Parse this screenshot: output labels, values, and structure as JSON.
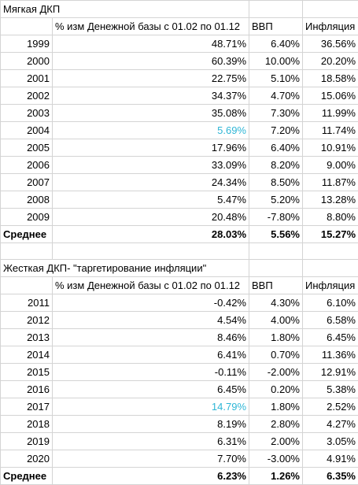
{
  "sections": [
    {
      "title": "Мягкая ДКП",
      "headers": [
        "",
        "% изм Денежной базы с 01.02 по 01.12",
        "ВВП",
        "Инфляция"
      ],
      "rows": [
        {
          "year": "1999",
          "money": "48.71%",
          "gdp": "6.40%",
          "inflation": "36.56%"
        },
        {
          "year": "2000",
          "money": "60.39%",
          "gdp": "10.00%",
          "inflation": "20.20%"
        },
        {
          "year": "2001",
          "money": "22.75%",
          "gdp": "5.10%",
          "inflation": "18.58%"
        },
        {
          "year": "2002",
          "money": "34.37%",
          "gdp": "4.70%",
          "inflation": "15.06%"
        },
        {
          "year": "2003",
          "money": "35.08%",
          "gdp": "7.30%",
          "inflation": "11.99%"
        },
        {
          "year": "2004",
          "money": "5.69%",
          "gdp": "7.20%",
          "inflation": "11.74%"
        },
        {
          "year": "2005",
          "money": "17.96%",
          "gdp": "6.40%",
          "inflation": "10.91%"
        },
        {
          "year": "2006",
          "money": "33.09%",
          "gdp": "8.20%",
          "inflation": "9.00%"
        },
        {
          "year": "2007",
          "money": "24.34%",
          "gdp": "8.50%",
          "inflation": "11.87%"
        },
        {
          "year": "2008",
          "money": "5.47%",
          "gdp": "5.20%",
          "inflation": "13.28%"
        },
        {
          "year": "2009",
          "money": "20.48%",
          "gdp": "-7.80%",
          "inflation": "8.80%"
        }
      ],
      "average": {
        "label": "Среднее",
        "money": "28.03%",
        "gdp": "5.56%",
        "inflation": "15.27%"
      }
    },
    {
      "title": "Жесткая ДКП- \"таргетирование инфляции\"",
      "headers": [
        "",
        "% изм Денежной базы с 01.02 по 01.12",
        "ВВП",
        "Инфляция"
      ],
      "rows": [
        {
          "year": "2011",
          "money": "-0.42%",
          "gdp": "4.30%",
          "inflation": "6.10%"
        },
        {
          "year": "2012",
          "money": "4.54%",
          "gdp": "4.00%",
          "inflation": "6.58%"
        },
        {
          "year": "2013",
          "money": "8.46%",
          "gdp": "1.80%",
          "inflation": "6.45%"
        },
        {
          "year": "2014",
          "money": "6.41%",
          "gdp": "0.70%",
          "inflation": "11.36%"
        },
        {
          "year": "2015",
          "money": "-0.11%",
          "gdp": "-2.00%",
          "inflation": "12.91%"
        },
        {
          "year": "2016",
          "money": "6.45%",
          "gdp": "0.20%",
          "inflation": "5.38%"
        },
        {
          "year": "2017",
          "money": "14.79%",
          "gdp": "1.80%",
          "inflation": "2.52%"
        },
        {
          "year": "2018",
          "money": "8.19%",
          "gdp": "2.80%",
          "inflation": "4.27%"
        },
        {
          "year": "2019",
          "money": "6.31%",
          "gdp": "2.00%",
          "inflation": "3.05%"
        },
        {
          "year": "2020",
          "money": "7.70%",
          "gdp": "-3.00%",
          "inflation": "4.91%"
        }
      ],
      "average": {
        "label": "Среднее",
        "money": "6.23%",
        "gdp": "1.26%",
        "inflation": "6.35%"
      }
    }
  ],
  "colors": {
    "highlight_text": "#2eb6d6",
    "gridline": "#d4d4d4"
  }
}
